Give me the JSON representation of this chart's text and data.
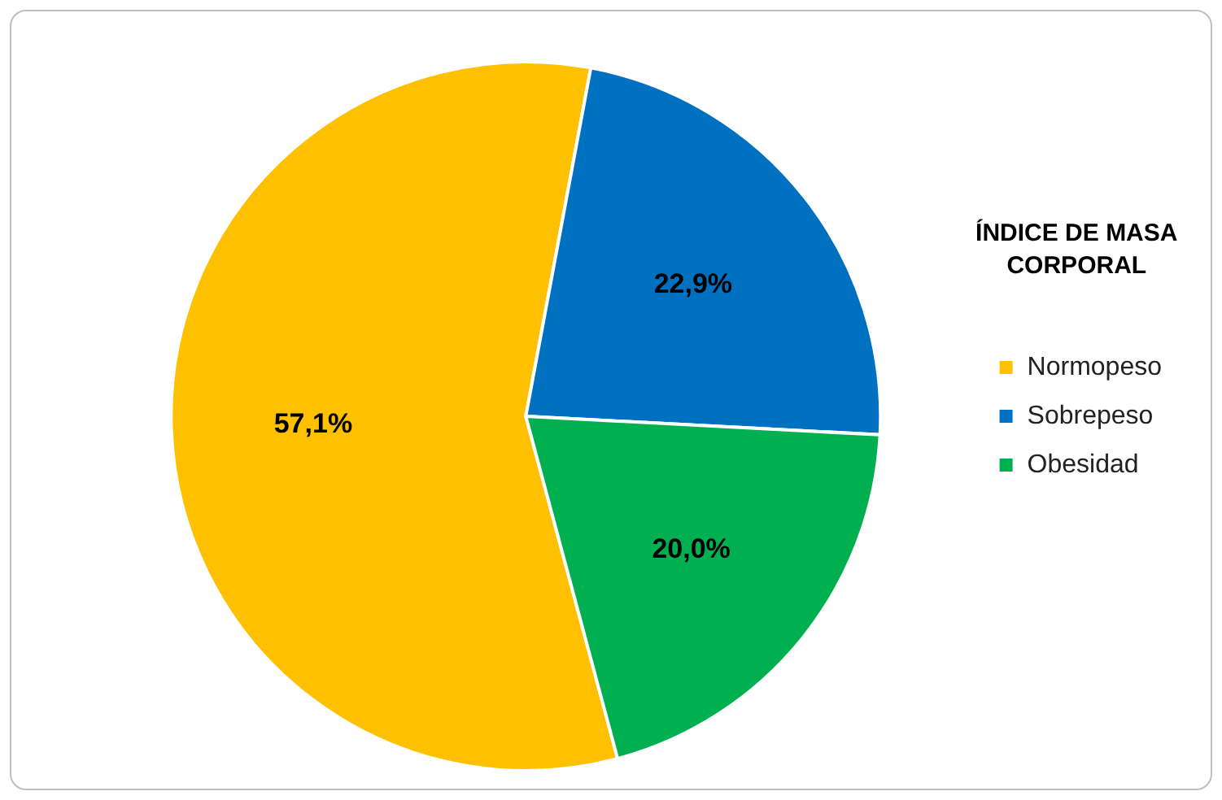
{
  "chart_data": {
    "type": "pie",
    "legend_title": "ÍNDICE DE MASA CORPORAL",
    "categories": [
      "Normopeso",
      "Sobrepeso",
      "Obesidad"
    ],
    "values": [
      57.1,
      22.9,
      20.0
    ],
    "colors": [
      "#ffc000",
      "#0070c0",
      "#00b050"
    ],
    "value_labels": [
      "57,1%",
      "22,9%",
      "20,0%"
    ],
    "legend": "right"
  }
}
